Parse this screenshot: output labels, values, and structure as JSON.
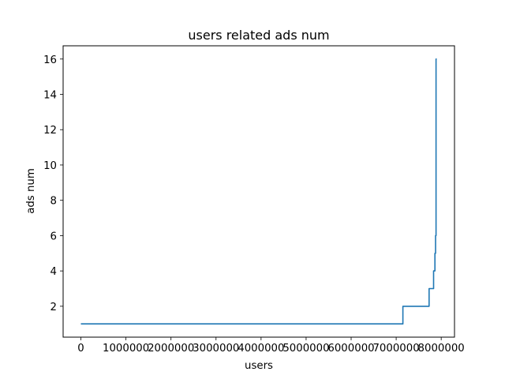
{
  "chart_data": {
    "type": "line",
    "title": "users related ads num",
    "xlabel": "users",
    "ylabel": "ads num",
    "xlim": [
      -395000,
      8295000
    ],
    "ylim": [
      0.25,
      16.75
    ],
    "grid": false,
    "x_ticks": [
      0,
      1000000,
      2000000,
      3000000,
      4000000,
      5000000,
      6000000,
      7000000,
      8000000
    ],
    "x_tick_labels": [
      "0",
      "1000000",
      "2000000",
      "3000000",
      "4000000",
      "5000000",
      "6000000",
      "7000000",
      "8000000"
    ],
    "y_ticks": [
      2,
      4,
      6,
      8,
      10,
      12,
      14,
      16
    ],
    "y_tick_labels": [
      "2",
      "4",
      "6",
      "8",
      "10",
      "12",
      "14",
      "16"
    ],
    "series": [
      {
        "name": "ads num",
        "color": "#1f77b4",
        "x": [
          0,
          7150000,
          7150000,
          7730000,
          7730000,
          7830000,
          7830000,
          7860000,
          7860000,
          7875000,
          7875000,
          7885000,
          7885000,
          7900000
        ],
        "y": [
          1,
          1,
          2,
          2,
          3,
          3,
          4,
          4,
          5,
          5,
          6,
          6,
          16,
          16
        ]
      }
    ]
  }
}
